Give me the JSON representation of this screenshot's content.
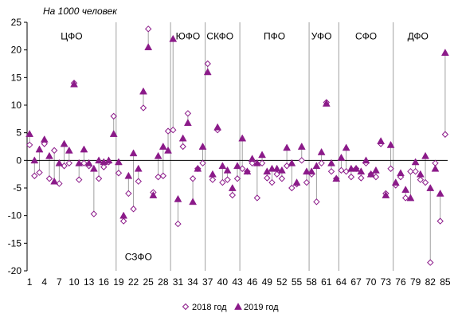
{
  "chart_data": {
    "type": "scatter",
    "title": "",
    "unit_label": "На 1000 человек",
    "xlabel": "",
    "ylabel": "",
    "xlim": [
      0.5,
      85.5
    ],
    "ylim": [
      -20,
      25
    ],
    "y_ticks": [
      -20,
      -15,
      -10,
      -5,
      0,
      5,
      10,
      15,
      20,
      25
    ],
    "x_ticks": [
      1,
      4,
      7,
      10,
      13,
      16,
      19,
      22,
      25,
      28,
      31,
      34,
      37,
      40,
      43,
      46,
      49,
      52,
      55,
      58,
      61,
      64,
      67,
      70,
      73,
      76,
      79,
      82,
      85
    ],
    "grid": false,
    "legend_position": "bottom",
    "colors": {
      "series": "#8b1a89",
      "separator": "#a0a0a0",
      "axis": "#000000"
    },
    "districts": [
      {
        "label": "ЦФО",
        "center": 9.5,
        "y": 22.5
      },
      {
        "label": "СЗФО",
        "center": 23,
        "y": -17.5
      },
      {
        "label": "ЮФО",
        "center": 33,
        "y": 22.5
      },
      {
        "label": "СКФО",
        "center": 39.5,
        "y": 22.5
      },
      {
        "label": "ПФО",
        "center": 50.5,
        "y": 22.5
      },
      {
        "label": "УФО",
        "center": 60,
        "y": 22.5
      },
      {
        "label": "СФО",
        "center": 69,
        "y": 22.5
      },
      {
        "label": "ДФО",
        "center": 79.5,
        "y": 22.5
      }
    ],
    "separators": [
      18.5,
      29.5,
      36.5,
      43.5,
      57.5,
      63.5,
      74.5
    ],
    "series": [
      {
        "name": "2018 год",
        "marker": "diamond",
        "values": [
          2.8,
          -2.8,
          -2.2,
          3.0,
          -3.3,
          1.8,
          -4.2,
          -1.0,
          -0.5,
          14.0,
          -3.5,
          -0.5,
          -1.0,
          -9.7,
          -3.3,
          -1.2,
          -0.3,
          8.0,
          -2.3,
          -11.0,
          -6.0,
          -8.8,
          -3.8,
          9.5,
          23.8,
          -5.8,
          -3.0,
          -2.8,
          5.3,
          5.5,
          -11.5,
          2.5,
          8.5,
          -3.3,
          -1.5,
          -0.5,
          17.5,
          -3.5,
          5.5,
          -4.0,
          -3.5,
          -6.3,
          -3.3,
          -1.5,
          -2.0,
          -0.5,
          -6.8,
          -0.5,
          -3.2,
          -4.0,
          -2.5,
          -3.3,
          -1.0,
          -5.0,
          -4.3,
          0.0,
          -4.0,
          -2.5,
          -7.5,
          -0.5,
          10.5,
          -2.0,
          -3.3,
          -1.8,
          -2.0,
          -3.0,
          -1.5,
          -3.2,
          -0.5,
          -2.5,
          -3.0,
          3.0,
          -6.0,
          -1.5,
          -4.5,
          -3.0,
          -6.8,
          -2.0,
          -2.0,
          -3.5,
          -4.0,
          -18.5,
          -0.5,
          -11.0,
          4.7
        ]
      },
      {
        "name": "2019 год",
        "marker": "triangle",
        "values": [
          4.8,
          0.0,
          2.0,
          3.8,
          0.8,
          -3.8,
          -0.5,
          3.0,
          1.8,
          13.8,
          -0.5,
          2.0,
          -0.5,
          -1.5,
          0.0,
          -0.3,
          0.0,
          4.8,
          -0.3,
          -10.0,
          -2.8,
          1.3,
          -1.5,
          12.5,
          20.5,
          -6.3,
          0.8,
          2.5,
          1.8,
          22.0,
          -7.0,
          4.0,
          6.8,
          -7.5,
          -1.5,
          2.5,
          16.0,
          -2.5,
          6.0,
          -1.0,
          -1.8,
          -5.0,
          -1.0,
          4.0,
          -2.0,
          0.3,
          -0.5,
          1.0,
          -2.0,
          -1.5,
          -1.5,
          -1.8,
          2.3,
          -0.5,
          -4.0,
          2.5,
          -2.0,
          -2.0,
          -1.0,
          1.5,
          10.3,
          -0.5,
          -3.3,
          0.5,
          2.3,
          -1.5,
          -1.5,
          -2.0,
          0.0,
          -2.5,
          -1.8,
          3.5,
          -6.3,
          2.8,
          -4.0,
          -2.3,
          -5.3,
          -6.8,
          -0.3,
          -2.5,
          0.8,
          -5.0,
          -1.5,
          -6.0,
          19.5
        ]
      }
    ]
  }
}
